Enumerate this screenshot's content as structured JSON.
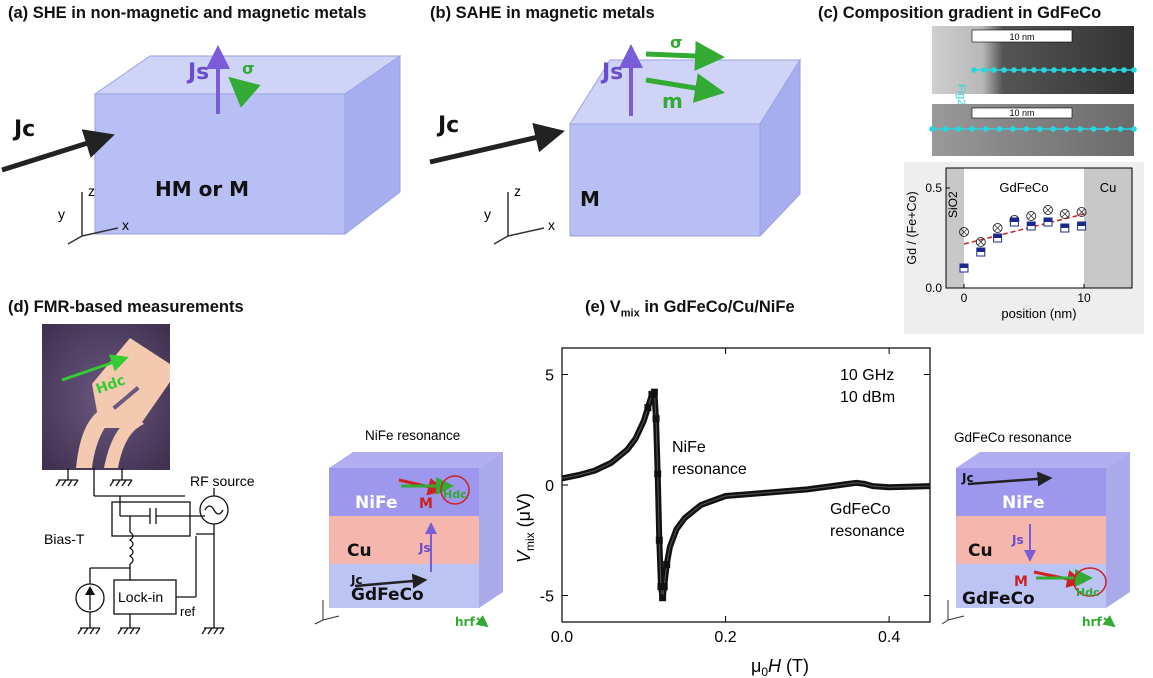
{
  "panels": {
    "a": {
      "title": "(a) SHE in non-magnetic and magnetic metals",
      "labels": {
        "js": "Js",
        "sigma": "σ",
        "jc": "Jc",
        "material": "HM or M"
      },
      "axes": {
        "x": "x",
        "y": "y",
        "z": "z"
      }
    },
    "b": {
      "title": "(b) SAHE in magnetic metals",
      "labels": {
        "js": "Js",
        "sigma": "σ",
        "m": "m",
        "jc": "Jc",
        "material": "M"
      },
      "axes": {
        "x": "x",
        "y": "y",
        "z": "z"
      }
    },
    "c": {
      "title": "(c) Composition gradient in GdFeCo",
      "scalebar1": "10 nm",
      "scalebar2": "10 nm",
      "rotated_label": "Fig2",
      "regions": {
        "left": "SiO2",
        "middle": "GdFeCo",
        "right": "Cu"
      },
      "ylabel": "Gd / (Fe+Co)",
      "xlabel": "position (nm)"
    },
    "d": {
      "title": "(d) FMR-based measurements",
      "labels": {
        "hdc": "Hdc",
        "bias_t": "Bias-T",
        "rf_source": "RF source",
        "lockin": "Lock-in",
        "ref": "ref"
      }
    },
    "e": {
      "title_main": "(e) V",
      "title_sub": "mix",
      "title_rest": " in GdFeCo/Cu/NiFe",
      "annot_freq": "10 GHz",
      "annot_power": "10 dBm",
      "annot_nife": [
        "NiFe",
        "resonance"
      ],
      "annot_gdfeco": [
        "GdFeCo",
        "resonance"
      ],
      "ylabel_main": "V",
      "ylabel_sub": "mix",
      "ylabel_unit": " (μV)",
      "xlabel_pre": "μ",
      "xlabel_sub": "0",
      "xlabel_main": "H",
      "xlabel_unit": " (T)"
    },
    "stack_left": {
      "title": "NiFe resonance",
      "layers": {
        "top": "NiFe",
        "mid": "Cu",
        "bottom": "GdFeCo"
      },
      "arrows": {
        "m": "M",
        "hdc": "Hdc",
        "js": "Js",
        "jc": "Jc",
        "hrf": "hrf"
      }
    },
    "stack_right": {
      "title": "GdFeCo resonance",
      "layers": {
        "top": "NiFe",
        "mid": "Cu",
        "bottom": "GdFeCo"
      },
      "arrows": {
        "m": "M",
        "hdc": "Hdc",
        "js": "Js",
        "jc": "Jc",
        "hrf": "hrf"
      }
    }
  },
  "colors": {
    "block": "#b8bff5",
    "nife": "#9d97ee",
    "cu": "#f4b6ad",
    "gdfeco": "#bcc4f3",
    "green": "#33aa33",
    "red": "#cc2222",
    "purple": "#7a5cd8",
    "cyan": "#27d6e0"
  },
  "chart_data": [
    {
      "type": "scatter",
      "panel": "c",
      "xlabel": "position (nm)",
      "ylabel": "Gd / (Fe+Co)",
      "xlim": [
        -1.5,
        14
      ],
      "ylim": [
        0,
        0.6
      ],
      "xticks": [
        0,
        10
      ],
      "yticks": [
        0.0,
        0.5
      ],
      "shaded_regions": [
        [
          -1.5,
          0
        ],
        [
          10,
          14
        ]
      ],
      "series": [
        {
          "marker": "circle-x",
          "x": [
            0,
            1.4,
            2.8,
            4.2,
            5.6,
            7.0,
            8.4,
            9.8
          ],
          "y": [
            0.28,
            0.23,
            0.3,
            0.34,
            0.36,
            0.39,
            0.37,
            0.38
          ]
        },
        {
          "marker": "square-half",
          "x": [
            0,
            1.4,
            2.8,
            4.2,
            5.6,
            7.0,
            8.4,
            9.8
          ],
          "y": [
            0.1,
            0.18,
            0.25,
            0.33,
            0.31,
            0.33,
            0.3,
            0.31
          ]
        }
      ],
      "fit": {
        "style": "dashed",
        "x": [
          0,
          10
        ],
        "y": [
          0.22,
          0.37
        ]
      }
    },
    {
      "type": "line",
      "panel": "e",
      "xlabel": "μ0H (T)",
      "ylabel": "Vmix (μV)",
      "xlim": [
        0,
        0.45
      ],
      "ylim": [
        -6.2,
        6.2
      ],
      "xticks": [
        0.0,
        0.2,
        0.4
      ],
      "yticks": [
        -5,
        0,
        5
      ],
      "series": [
        {
          "x": [
            0.0,
            0.02,
            0.04,
            0.06,
            0.08,
            0.09,
            0.1,
            0.105,
            0.11,
            0.113,
            0.115,
            0.117,
            0.119,
            0.121,
            0.123,
            0.125,
            0.128,
            0.132,
            0.14,
            0.15,
            0.17,
            0.2,
            0.25,
            0.3,
            0.33,
            0.35,
            0.36,
            0.37,
            0.38,
            0.4,
            0.45
          ],
          "y": [
            0.3,
            0.45,
            0.65,
            1.0,
            1.6,
            2.1,
            2.9,
            3.5,
            4.1,
            4.2,
            3.0,
            0.5,
            -2.5,
            -4.6,
            -5.1,
            -4.6,
            -3.6,
            -2.8,
            -2.0,
            -1.5,
            -0.9,
            -0.5,
            -0.35,
            -0.2,
            -0.05,
            0.05,
            0.1,
            0.05,
            -0.05,
            -0.1,
            -0.05
          ]
        }
      ]
    }
  ]
}
